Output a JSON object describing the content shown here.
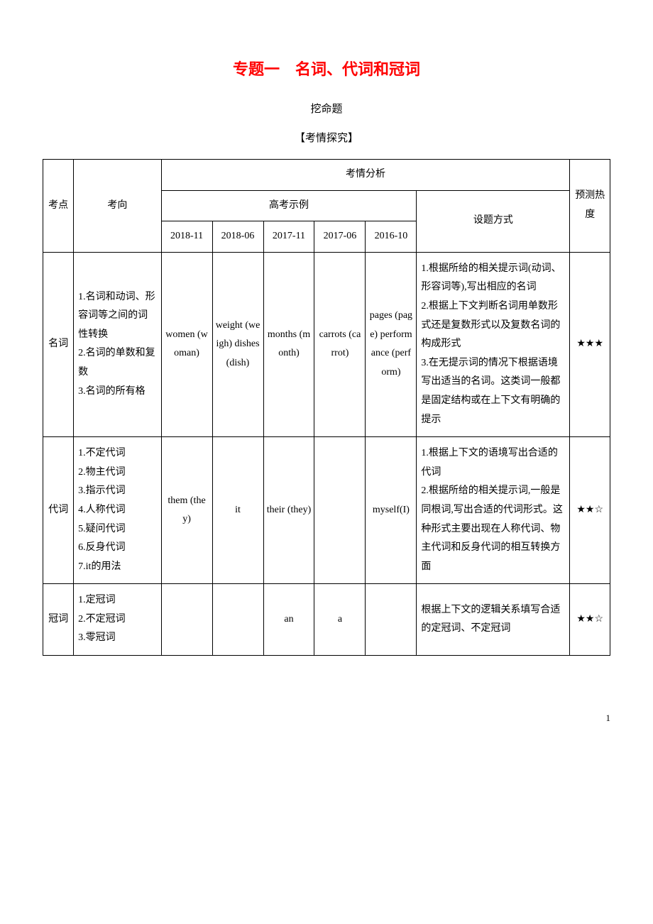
{
  "title": "专题一　名词、代词和冠词",
  "subtitle": "挖命题",
  "section_label": "【考情探究】",
  "header": {
    "kaodian": "考点",
    "kaoxiang": "考向",
    "fenxi": "考情分析",
    "yuce": "预测热度",
    "shili": "高考示例",
    "fangshi": "设题方式"
  },
  "exam_cols": [
    "2018-11",
    "2018-06",
    "2017-11",
    "2017-06",
    "2016-10"
  ],
  "rows": [
    {
      "kaodian": "名词",
      "kaoxiang": "1.名词和动词、形容词等之间的词性转换\n2.名词的单数和复数\n3.名词的所有格",
      "exams": [
        "women (woman)",
        "weight (weigh) dishes (dish)",
        "months (month)",
        "carrots (carrot)",
        "pages (page) performance (perform)"
      ],
      "fangshi": "1.根据所给的相关提示词(动词、形容词等),写出相应的名词\n2.根据上下文判断名词用单数形式还是复数形式以及复数名词的构成形式\n3.在无提示词的情况下根据语境写出适当的名词。这类词一般都是固定结构或在上下文有明确的提示",
      "redu": "★★★"
    },
    {
      "kaodian": "代词",
      "kaoxiang": "1.不定代词\n2.物主代词\n3.指示代词\n4.人称代词\n5.疑问代词\n6.反身代词\n7.it的用法",
      "exams": [
        "them (they)",
        "it",
        "their (they)",
        "",
        "myself(I)"
      ],
      "fangshi": "1.根据上下文的语境写出合适的代词\n2.根据所给的相关提示词,一般是同根词,写出合适的代词形式。这种形式主要出现在人称代词、物主代词和反身代词的相互转换方面",
      "redu": "★★☆"
    },
    {
      "kaodian": "冠词",
      "kaoxiang": "1.定冠词\n2.不定冠词\n3.零冠词",
      "exams": [
        "",
        "",
        "an",
        "a",
        ""
      ],
      "fangshi": "根据上下文的逻辑关系填写合适的定冠词、不定冠词",
      "redu": "★★☆"
    }
  ],
  "page_number": "1",
  "colors": {
    "title": "#ff0000",
    "border": "#000000",
    "text": "#000000",
    "background": "#ffffff"
  }
}
